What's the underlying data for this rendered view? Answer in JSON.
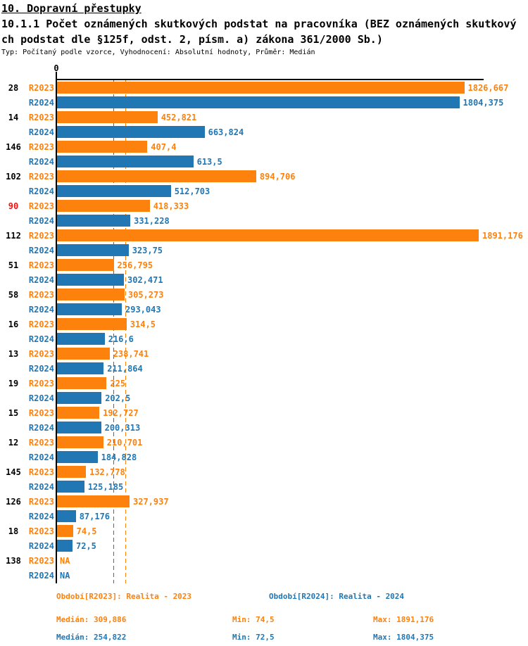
{
  "header": {
    "title": "10. Dopravní přestupky",
    "subtitle_line1": "10.1.1 Počet oznámených skutkových podstat na pracovníka (BEZ oznámených skutkový",
    "subtitle_line2": "ch podstat dle §125f, odst. 2, písm. a) zákona 361/2000 Sb.)",
    "meta": "Typ: Počítaný podle vzorce, Vyhodnocení: Absolutní hodnoty, Průměr: Medián"
  },
  "colors": {
    "r2023": "#fd810d",
    "r2024": "#2077b4",
    "highlight_category": "#ee1111",
    "category": "#000000",
    "axis": "#000000"
  },
  "axis": {
    "zero_label": "0"
  },
  "chart_data": {
    "type": "bar",
    "orientation": "horizontal",
    "grid": false,
    "xlim": [
      0,
      1891.176
    ],
    "na_label": "NA",
    "categories": [
      "28",
      "14",
      "146",
      "102",
      "90",
      "112",
      "51",
      "58",
      "16",
      "13",
      "19",
      "15",
      "12",
      "145",
      "126",
      "18",
      "138"
    ],
    "highlighted_categories": [
      "90"
    ],
    "series": [
      {
        "name": "R2023",
        "color": "#fd810d",
        "values": [
          1826.667,
          452.821,
          407.4,
          894.706,
          418.333,
          1891.176,
          256.795,
          305.273,
          314.5,
          238.741,
          225,
          192.727,
          210.701,
          132.778,
          327.937,
          74.5,
          null
        ],
        "labels": [
          "1826,667",
          "452,821",
          "407,4",
          "894,706",
          "418,333",
          "1891,176",
          "256,795",
          "305,273",
          "314,5",
          "238,741",
          "225",
          "192,727",
          "210,701",
          "132,778",
          "327,937",
          "74,5",
          "NA"
        ]
      },
      {
        "name": "R2024",
        "color": "#2077b4",
        "values": [
          1804.375,
          663.824,
          613.5,
          512.703,
          331.228,
          323.75,
          302.471,
          293.043,
          216.6,
          211.864,
          202.5,
          200.313,
          184.828,
          125.185,
          87.176,
          72.5,
          null
        ],
        "labels": [
          "1804,375",
          "663,824",
          "613,5",
          "512,703",
          "331,228",
          "323,75",
          "302,471",
          "293,043",
          "216,6",
          "211,864",
          "202,5",
          "200,313",
          "184,828",
          "125,185",
          "87,176",
          "72,5",
          "NA"
        ]
      }
    ],
    "reference_lines": [
      {
        "name": "median-r2023",
        "value": 309.886,
        "color": "#fd810d"
      },
      {
        "name": "median-r2024",
        "value": 254.822,
        "color": "#2077b4"
      }
    ]
  },
  "footer": {
    "legend_r2023": "Období[R2023]: Realita - 2023",
    "legend_r2024": "Období[R2024]: Realita - 2024",
    "stats_r2023": {
      "median": "Medián: 309,886",
      "min": "Min: 74,5",
      "max": "Max: 1891,176"
    },
    "stats_r2024": {
      "median": "Medián: 254,822",
      "min": "Min: 72,5",
      "max": "Max: 1804,375"
    }
  }
}
